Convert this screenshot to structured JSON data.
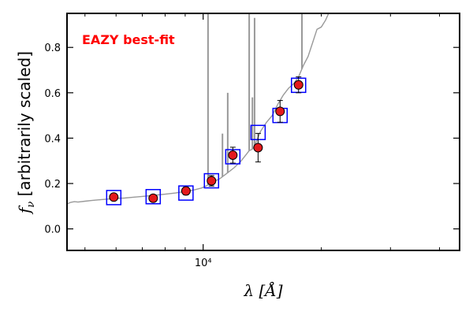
{
  "chart_data": {
    "type": "scatter",
    "title": "",
    "annotation": "EAZY best-fit",
    "xlabel": "λ [Å]",
    "ylabel": "f_ν [arbitrarily scaled]",
    "xscale": "log",
    "xlim": [
      4500,
      45000
    ],
    "ylim": [
      -0.095,
      0.95
    ],
    "grid": false,
    "x_tick_labels": [
      {
        "value": 10000,
        "label": "10⁴"
      }
    ],
    "x_minor_ticks": [
      5000,
      6000,
      7000,
      8000,
      9000,
      20000,
      30000,
      40000
    ],
    "y_ticks": [
      0.0,
      0.2,
      0.4,
      0.6,
      0.8
    ],
    "y_tick_labels": [
      "0.0",
      "0.2",
      "0.4",
      "0.6",
      "0.8"
    ],
    "colors": {
      "observed": "#e41a1c",
      "model_box": "#0000ff",
      "template": "#999999",
      "annotation": "#ff0000"
    },
    "series": [
      {
        "marker": "circle",
        "x": [
          5920,
          7460,
          9040,
          10500,
          11900,
          13800,
          15700,
          17500
        ],
        "y": [
          0.14,
          0.135,
          0.167,
          0.212,
          0.325,
          0.358,
          0.518,
          0.635
        ],
        "yerr": [
          0.013,
          0.012,
          0.017,
          0.023,
          0.035,
          0.063,
          0.048,
          0.035
        ]
      },
      {
        "marker": "open-square",
        "x": [
          5920,
          7460,
          9040,
          10500,
          11900,
          13800,
          15700,
          17500
        ],
        "y": [
          0.138,
          0.142,
          0.158,
          0.212,
          0.318,
          0.425,
          0.5,
          0.633
        ]
      }
    ],
    "template_spectrum": {
      "x": [
        4500,
        4600,
        4700,
        4800,
        5000,
        5200,
        5400,
        5600,
        5800,
        6000,
        6300,
        6600,
        7000,
        7500,
        8000,
        8500,
        9000,
        9500,
        9900,
        10200,
        10500,
        11000,
        11500,
        12000,
        12500,
        12900,
        13100,
        13300,
        13500,
        13700,
        14000,
        14500,
        15000,
        15500,
        16000,
        16500,
        17000,
        17500,
        18000,
        18500,
        19000,
        19500,
        20000,
        20500,
        21000,
        21500,
        22000
      ],
      "y": [
        0.11,
        0.117,
        0.12,
        0.118,
        0.122,
        0.125,
        0.128,
        0.13,
        0.132,
        0.135,
        0.136,
        0.139,
        0.143,
        0.148,
        0.153,
        0.158,
        0.165,
        0.172,
        0.18,
        0.19,
        0.205,
        0.22,
        0.245,
        0.27,
        0.3,
        0.33,
        0.345,
        0.35,
        0.36,
        0.39,
        0.43,
        0.47,
        0.5,
        0.55,
        0.59,
        0.62,
        0.64,
        0.67,
        0.72,
        0.76,
        0.82,
        0.88,
        0.89,
        0.92,
        0.96,
        0.99,
        1.02
      ]
    },
    "emission_lines": [
      {
        "x": 10290,
        "top": 0.96
      },
      {
        "x": 11200,
        "top": 0.42
      },
      {
        "x": 11550,
        "top": 0.6
      },
      {
        "x": 13100,
        "top": 0.96
      },
      {
        "x": 13350,
        "top": 0.58
      },
      {
        "x": 13520,
        "top": 0.93
      },
      {
        "x": 17850,
        "top": 0.96
      }
    ]
  }
}
